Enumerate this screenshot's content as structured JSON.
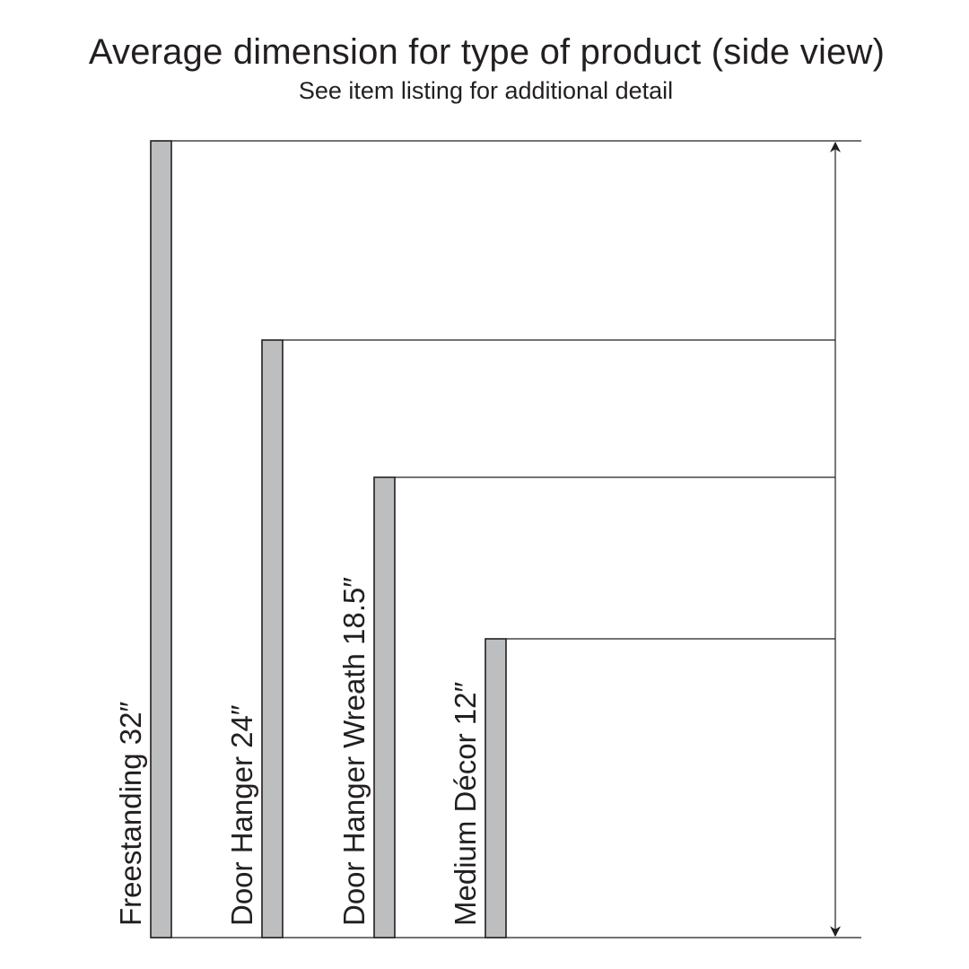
{
  "title": "Average dimension for type of product (side view)",
  "subtitle": "See item listing for additional detail",
  "products": [
    {
      "label": "Freestanding 32″",
      "height_in": 32
    },
    {
      "label": "Door Hanger 24″",
      "height_in": 24
    },
    {
      "label": "Door Hanger Wreath 18.5″",
      "height_in": 18.5
    },
    {
      "label": "Medium Décor 12″",
      "height_in": 12
    }
  ],
  "colors": {
    "bar_fill": "#bcbec0",
    "line": "#231f20",
    "background": "#ffffff"
  }
}
